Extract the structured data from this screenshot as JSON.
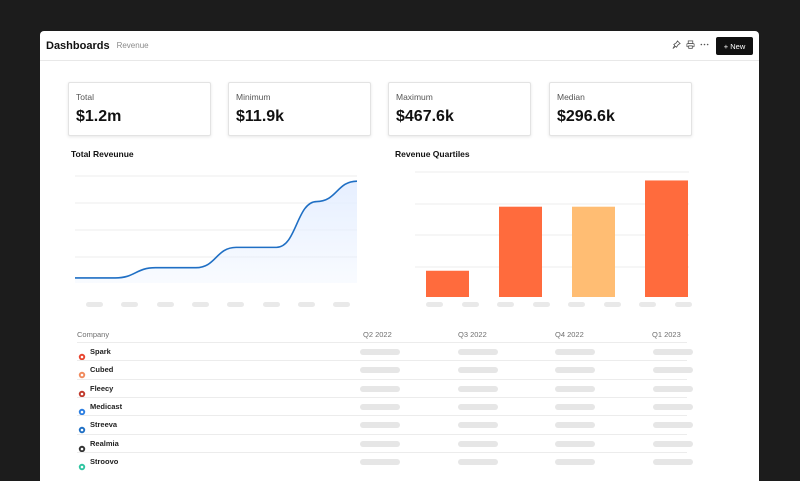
{
  "header": {
    "title": "Dashboards",
    "subtitle": "Revenue",
    "icons": [
      "pin-icon",
      "print-icon",
      "more-icon"
    ],
    "new_button_label": "+ New"
  },
  "stats": [
    {
      "label": "Total",
      "value": "$1.2m"
    },
    {
      "label": "Minimum",
      "value": "$11.9k"
    },
    {
      "label": "Maximum",
      "value": "$467.6k"
    },
    {
      "label": "Median",
      "value": "$296.6k"
    }
  ],
  "charts": {
    "line_title": "Total Reveunue",
    "bar_title": "Revenue Quartiles"
  },
  "chart_data": [
    {
      "type": "area",
      "title": "Total Reveunue",
      "x": [
        1,
        2,
        3,
        4,
        5,
        6,
        7,
        8
      ],
      "values": [
        5,
        5,
        15,
        15,
        35,
        35,
        80,
        100
      ],
      "ylim": [
        0,
        110
      ],
      "grid": true,
      "x_tick_labels_visible": false,
      "colors": {
        "line": "#1f6fc4",
        "fill": "#e6efff"
      }
    },
    {
      "type": "bar",
      "title": "Revenue Quartiles",
      "categories": [
        "",
        "",
        "",
        ""
      ],
      "values": [
        25,
        86,
        86,
        111
      ],
      "ylim": [
        0,
        120
      ],
      "grid": true,
      "x_tick_labels_visible": false,
      "colors": [
        "#ff6b3d",
        "#ff6b3d",
        "#ffbd73",
        "#ff6b3d"
      ]
    }
  ],
  "table": {
    "columns": [
      "Company",
      "Q2 2022",
      "Q3 2022",
      "Q4 2022",
      "Q1 2023"
    ],
    "rows": [
      {
        "company": "Spark",
        "icon": "spark-icon",
        "color": "#e8442e"
      },
      {
        "company": "Cubed",
        "icon": "cubed-icon",
        "color": "#f08a5d"
      },
      {
        "company": "Fleecy",
        "icon": "fleecy-icon",
        "color": "#c0392b"
      },
      {
        "company": "Medicast",
        "icon": "medicast-icon",
        "color": "#2a7de1"
      },
      {
        "company": "Streeva",
        "icon": "streeva-icon",
        "color": "#1f6fc4"
      },
      {
        "company": "Realmia",
        "icon": "realmia-icon",
        "color": "#333333"
      },
      {
        "company": "Stroovo",
        "icon": "stroovo-icon",
        "color": "#2ec4a0"
      }
    ]
  }
}
